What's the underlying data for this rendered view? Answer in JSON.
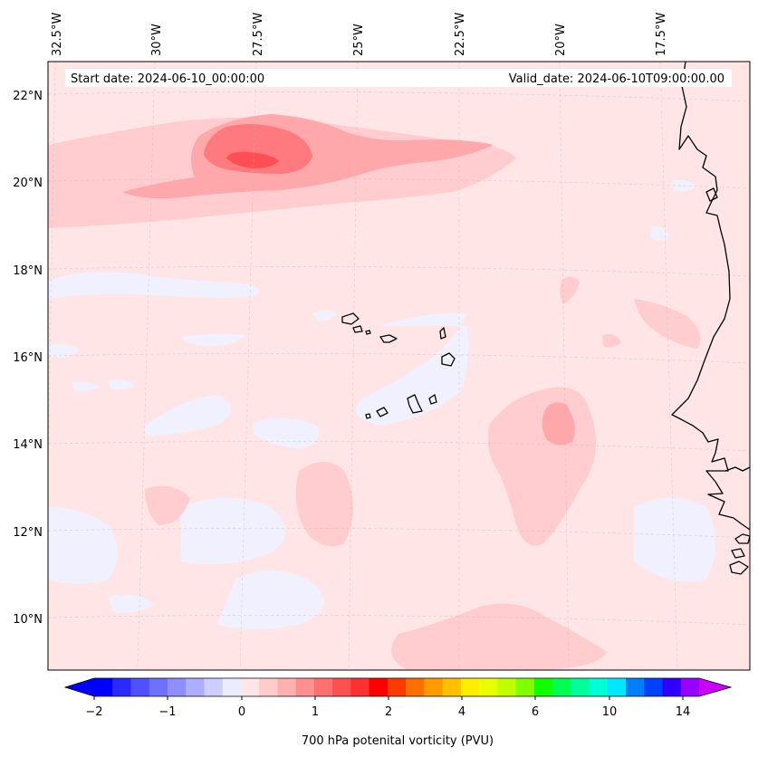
{
  "header": {
    "start_date": "Start date: 2024-06-10_00:00:00",
    "valid_date": "Valid_date: 2024-06-10T09:00:00.00"
  },
  "map": {
    "lon_labels": [
      "32.5°W",
      "30°W",
      "27.5°W",
      "25°W",
      "22.5°W",
      "20°W",
      "17.5°W"
    ],
    "lat_labels": [
      "22°N",
      "20°N",
      "18°N",
      "16°N",
      "14°N",
      "12°N",
      "10°N"
    ],
    "colors": {
      "background_field": "#ffe5e6",
      "field_low": "#f0f0ff",
      "field_light_red": "#ffcdcf",
      "field_medium_red": "#ffa8ab",
      "field_red": "#ff7a7e",
      "field_strong_red": "#ff4e54",
      "coastline": "#000000"
    }
  },
  "colorbar": {
    "label": "700 hPa potenital vorticity (PVU)",
    "tick_labels": [
      "−2",
      "−1",
      "0",
      "1",
      "2",
      "4",
      "6",
      "10",
      "14"
    ],
    "colors": [
      "#0000ff",
      "#2a2aff",
      "#5050ff",
      "#7070ff",
      "#8e8eff",
      "#aeaeff",
      "#cdcdff",
      "#ececff",
      "#ffe6e6",
      "#ffcccc",
      "#ffb0b0",
      "#ff9090",
      "#ff7070",
      "#ff5050",
      "#ff3030",
      "#ff0000",
      "#ff3a00",
      "#ff6e00",
      "#ff9a00",
      "#ffc000",
      "#ffee00",
      "#e8ff00",
      "#bfff00",
      "#7fff00",
      "#10ff00",
      "#00ff50",
      "#00ff98",
      "#00ffd4",
      "#00e8ff",
      "#0080ff",
      "#0040ff",
      "#3000ff",
      "#9800ff"
    ],
    "extend_low_color": "#0000ff",
    "extend_high_color": "#cc00ff"
  }
}
